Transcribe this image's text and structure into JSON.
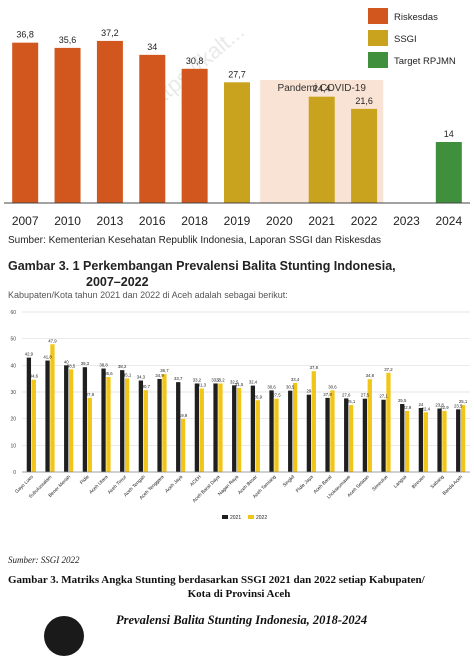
{
  "chart_data": [
    {
      "type": "bar",
      "categories": [
        "2007",
        "2010",
        "2013",
        "2016",
        "2018",
        "2019",
        "2020",
        "2021",
        "2022",
        "2023",
        "2024"
      ],
      "series": [
        {
          "name": "Riskesdas",
          "color": "#d2571e",
          "values": [
            36.8,
            35.6,
            37.2,
            34,
            30.8,
            null,
            null,
            null,
            null,
            null,
            null
          ]
        },
        {
          "name": "SSGI",
          "color": "#c9a21e",
          "values": [
            null,
            null,
            null,
            null,
            null,
            27.7,
            null,
            24.4,
            21.6,
            null,
            null
          ]
        },
        {
          "name": "Target RPJMN",
          "color": "#3f8f3c",
          "values": [
            null,
            null,
            null,
            null,
            null,
            null,
            null,
            null,
            null,
            null,
            14
          ]
        }
      ],
      "data_labels": [
        "36,8",
        "35,6",
        "37,2",
        "34",
        "30,8",
        "27,7",
        "",
        "24,4",
        "21,6",
        "",
        "14"
      ],
      "annotation": "Pandemi COVID-19",
      "watermark": "https://kalt...",
      "ylim": [
        0,
        42
      ],
      "legend_position": "top-right",
      "grid": false
    },
    {
      "type": "bar",
      "categories": [
        "Gayo Lues",
        "Subulussalam",
        "Bener Meriah",
        "Pidie",
        "Aceh Utara",
        "Aceh Timur",
        "Aceh Tengah",
        "Aceh Tenggara",
        "Aceh Jaya",
        "ACEH",
        "Aceh Barat Daya",
        "Nagan Raya",
        "Aceh Besar",
        "Aceh Tamiang",
        "Singkil",
        "Pidie Jaya",
        "Aceh Barat",
        "Lhokseumawe",
        "Aceh Selatan",
        "Simeulue",
        "Langsa",
        "Bireuen",
        "Sabang",
        "Banda Aceh"
      ],
      "series": [
        {
          "name": "2021",
          "color": "#1f1f1f",
          "values": [
            42.9,
            41.8,
            40,
            39.3,
            38.8,
            38.2,
            34.3,
            34.9,
            33.7,
            33.2,
            33.2,
            32.5,
            32.4,
            30.6,
            30.5,
            29,
            27.8,
            27.6,
            27.5,
            27.1,
            25.5,
            24,
            23.8,
            23.5
          ]
        },
        {
          "name": "2022",
          "color": "#f2c618",
          "values": [
            34.6,
            47.9,
            38.5,
            27.8,
            35.6,
            35.1,
            30.7,
            36.7,
            19.9,
            31.3,
            33.2,
            31.5,
            26.9,
            27.5,
            33.4,
            37.8,
            30.6,
            25.1,
            34.8,
            37.2,
            22.9,
            22.4,
            22.9,
            25.1
          ]
        }
      ],
      "labels_2021": [
        "42,9",
        "41,8",
        "40",
        "39,3",
        "38,8",
        "38,2",
        "34,3",
        "34,9",
        "33,7",
        "33,2",
        "33,2",
        "32,5",
        "32,4",
        "30,6",
        "30,5",
        "29",
        "27,8",
        "27,6",
        "27,5",
        "27,1",
        "25,5",
        "24",
        "23,8",
        "23,5"
      ],
      "labels_2022": [
        "34,6",
        "47,9",
        "38,5",
        "27,8",
        "35,6",
        "35,1",
        "30,7",
        "36,7",
        "19,9",
        "31,3",
        "33,2",
        "31,5",
        "26,9",
        "27,5",
        "33,4",
        "37,8",
        "30,6",
        "25,1",
        "34,8",
        "37,2",
        "22,9",
        "22,4",
        "22,9",
        "25,1"
      ],
      "yticks": [
        0,
        10,
        20,
        30,
        40,
        50,
        60
      ],
      "ylim": [
        0,
        60
      ],
      "legend_position": "bottom-center",
      "grid": true
    }
  ],
  "captions": {
    "source1": "Sumber: Kementerian Kesehatan Republik Indonesia, Laporan SSGI dan Riskesdas",
    "figure1_line1": "Gambar 3. 1 Perkembangan Prevalensi Balita Stunting Indonesia,",
    "figure1_line2": "2007–2022",
    "cut_text": "Kabupaten/Kota tahun 2021 dan 2022 di Aceh adalah sebagai berikut:",
    "source2": "Sumber: SSGI 2022",
    "figure2_line1": "Gambar 3. Matriks Angka Stunting berdasarkan SSGI 2021 dan 2022 setiap Kabupaten/",
    "figure2_line2": "Kota di Provinsi Aceh",
    "footer_title": "Prevalensi Balita Stunting Indonesia, 2018-2024"
  }
}
